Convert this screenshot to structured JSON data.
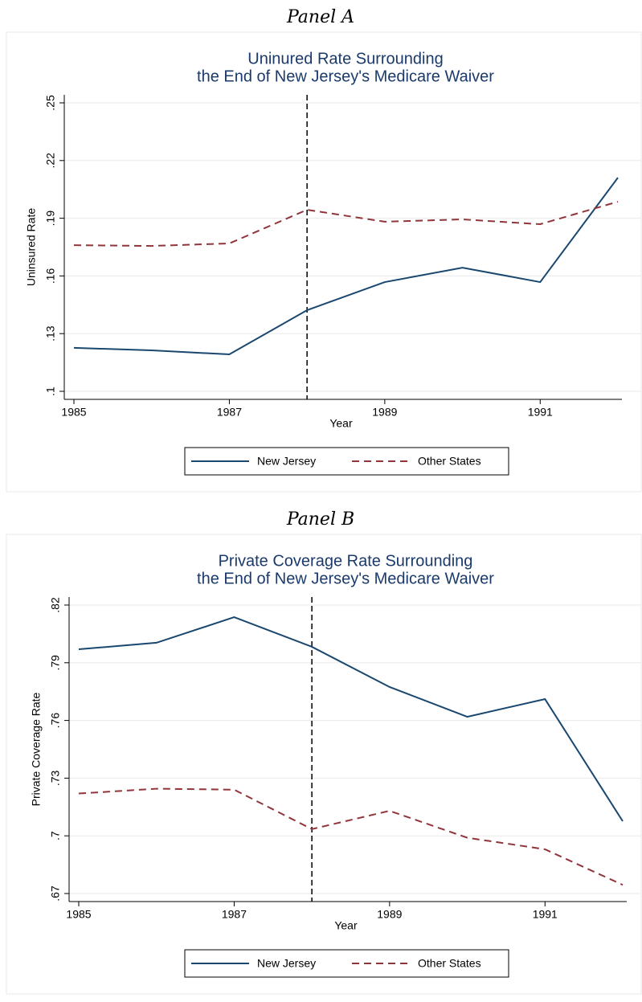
{
  "chart_data": [
    {
      "type": "line",
      "panel": "Panel A",
      "title": [
        "Uninured Rate Surrounding",
        "the End of New Jersey's Medicare Waiver"
      ],
      "x_label": "Year",
      "y_label": "Uninsured Rate",
      "x": [
        1985,
        1986,
        1987,
        1988,
        1989,
        1990,
        1991,
        1992
      ],
      "series": [
        {
          "name": "New Jersey",
          "color": "#1a476f",
          "dash": false,
          "values": [
            0.1226,
            0.1213,
            0.1192,
            0.1422,
            0.1568,
            0.1643,
            0.1568,
            0.2111
          ]
        },
        {
          "name": "Other States",
          "color": "#90353b",
          "dash": true,
          "values": [
            0.176,
            0.1756,
            0.1769,
            0.1944,
            0.1882,
            0.1894,
            0.1869,
            0.1986
          ]
        }
      ],
      "xlim": [
        1985,
        1992
      ],
      "xticks": [
        1985,
        1987,
        1989,
        1991
      ],
      "ylim": [
        0.1,
        0.25
      ],
      "yticks": [
        {
          "value": 0.1,
          "label": ".1"
        },
        {
          "value": 0.13,
          "label": ".13"
        },
        {
          "value": 0.16,
          "label": ".16"
        },
        {
          "value": 0.19,
          "label": ".19"
        },
        {
          "value": 0.22,
          "label": ".22"
        },
        {
          "value": 0.25,
          "label": ".25"
        }
      ],
      "vline": 1988,
      "grid": true,
      "legend": "bottom"
    },
    {
      "type": "line",
      "panel": "Panel B",
      "title": [
        "Private Coverage Rate Surrounding",
        "the End of New Jersey's Medicare Waiver"
      ],
      "x_label": "Year",
      "y_label": "Private Coverage Rate",
      "x": [
        1985,
        1986,
        1987,
        1988,
        1989,
        1990,
        1991,
        1992
      ],
      "series": [
        {
          "name": "New Jersey",
          "color": "#1a476f",
          "dash": false,
          "values": [
            0.797,
            0.8004,
            0.8137,
            0.7983,
            0.7774,
            0.7619,
            0.7711,
            0.7076
          ]
        },
        {
          "name": "Other States",
          "color": "#90353b",
          "dash": true,
          "values": [
            0.722,
            0.7245,
            0.724,
            0.7035,
            0.713,
            0.699,
            0.693,
            0.6745
          ]
        }
      ],
      "xlim": [
        1985,
        1992
      ],
      "xticks": [
        1985,
        1987,
        1989,
        1991
      ],
      "ylim": [
        0.67,
        0.82
      ],
      "yticks": [
        {
          "value": 0.67,
          "label": ".67"
        },
        {
          "value": 0.7,
          "label": ".7"
        },
        {
          "value": 0.73,
          "label": ".73"
        },
        {
          "value": 0.76,
          "label": ".76"
        },
        {
          "value": 0.79,
          "label": ".79"
        },
        {
          "value": 0.82,
          "label": ".82"
        }
      ],
      "vline": 1988,
      "grid": true,
      "legend": "bottom"
    }
  ]
}
